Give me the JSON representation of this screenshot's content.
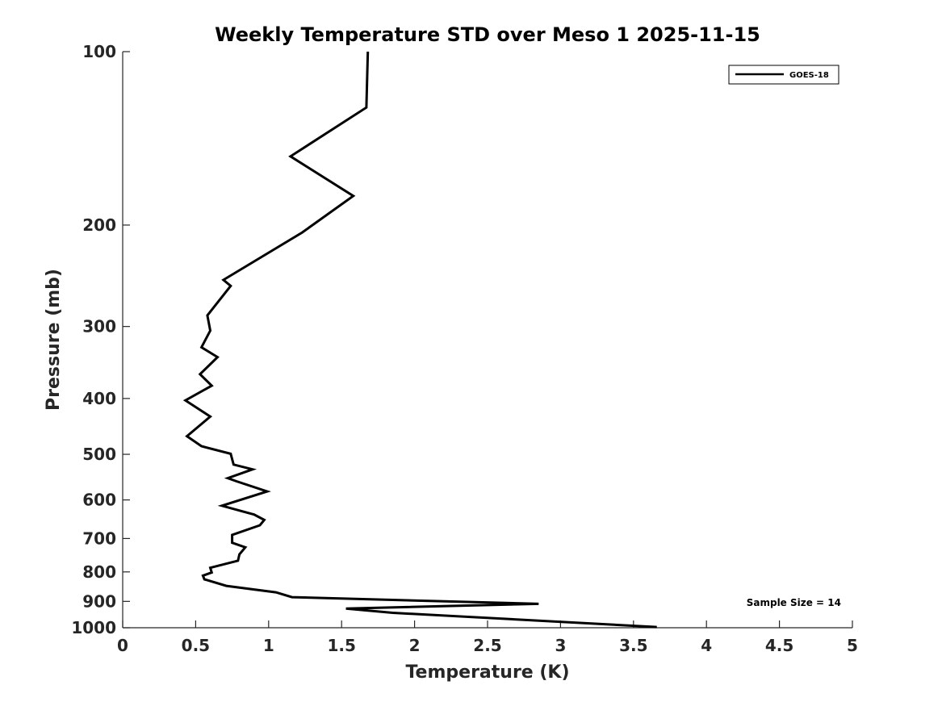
{
  "chart_data": {
    "type": "line",
    "title": "Weekly Temperature STD over Meso 1 2025-11-15",
    "xlabel": "Temperature (K)",
    "ylabel": "Pressure (mb)",
    "xlim": [
      0,
      5
    ],
    "ylim": [
      100,
      1000
    ],
    "yscale": "log",
    "yreversed": true,
    "grid": false,
    "legend_position": "top-right",
    "xticks": [
      0,
      0.5,
      1,
      1.5,
      2,
      2.5,
      3,
      3.5,
      4,
      4.5,
      5
    ],
    "xtick_labels": [
      "0",
      "0.5",
      "1",
      "1.5",
      "2",
      "2.5",
      "3",
      "3.5",
      "4",
      "4.5",
      "5"
    ],
    "yticks": [
      100,
      200,
      300,
      400,
      500,
      600,
      700,
      800,
      900,
      1000
    ],
    "ytick_labels": [
      "100",
      "200",
      "300",
      "400",
      "500",
      "600",
      "700",
      "800",
      "900",
      "1000"
    ],
    "annotation": "Sample Size = 14",
    "series": [
      {
        "name": "GOES-18",
        "color": "#000000",
        "points": [
          [
            1.68,
            100
          ],
          [
            1.67,
            125
          ],
          [
            1.15,
            152
          ],
          [
            1.58,
            178
          ],
          [
            1.23,
            206
          ],
          [
            0.69,
            249
          ],
          [
            0.74,
            255
          ],
          [
            0.58,
            287
          ],
          [
            0.6,
            305
          ],
          [
            0.54,
            326
          ],
          [
            0.65,
            339
          ],
          [
            0.53,
            363
          ],
          [
            0.61,
            380
          ],
          [
            0.43,
            403
          ],
          [
            0.6,
            430
          ],
          [
            0.44,
            465
          ],
          [
            0.54,
            484
          ],
          [
            0.74,
            499
          ],
          [
            0.76,
            521
          ],
          [
            0.89,
            531
          ],
          [
            0.72,
            550
          ],
          [
            0.78,
            557
          ],
          [
            0.99,
            580
          ],
          [
            0.68,
            614
          ],
          [
            0.9,
            636
          ],
          [
            0.97,
            650
          ],
          [
            0.94,
            664
          ],
          [
            0.75,
            690
          ],
          [
            0.75,
            712
          ],
          [
            0.84,
            725
          ],
          [
            0.8,
            746
          ],
          [
            0.79,
            765
          ],
          [
            0.6,
            787
          ],
          [
            0.61,
            802
          ],
          [
            0.55,
            812
          ],
          [
            0.56,
            824
          ],
          [
            0.71,
            846
          ],
          [
            1.05,
            868
          ],
          [
            1.16,
            885
          ],
          [
            2.85,
            909
          ],
          [
            1.53,
            926
          ],
          [
            1.85,
            942
          ],
          [
            3.66,
            997
          ]
        ]
      }
    ]
  }
}
